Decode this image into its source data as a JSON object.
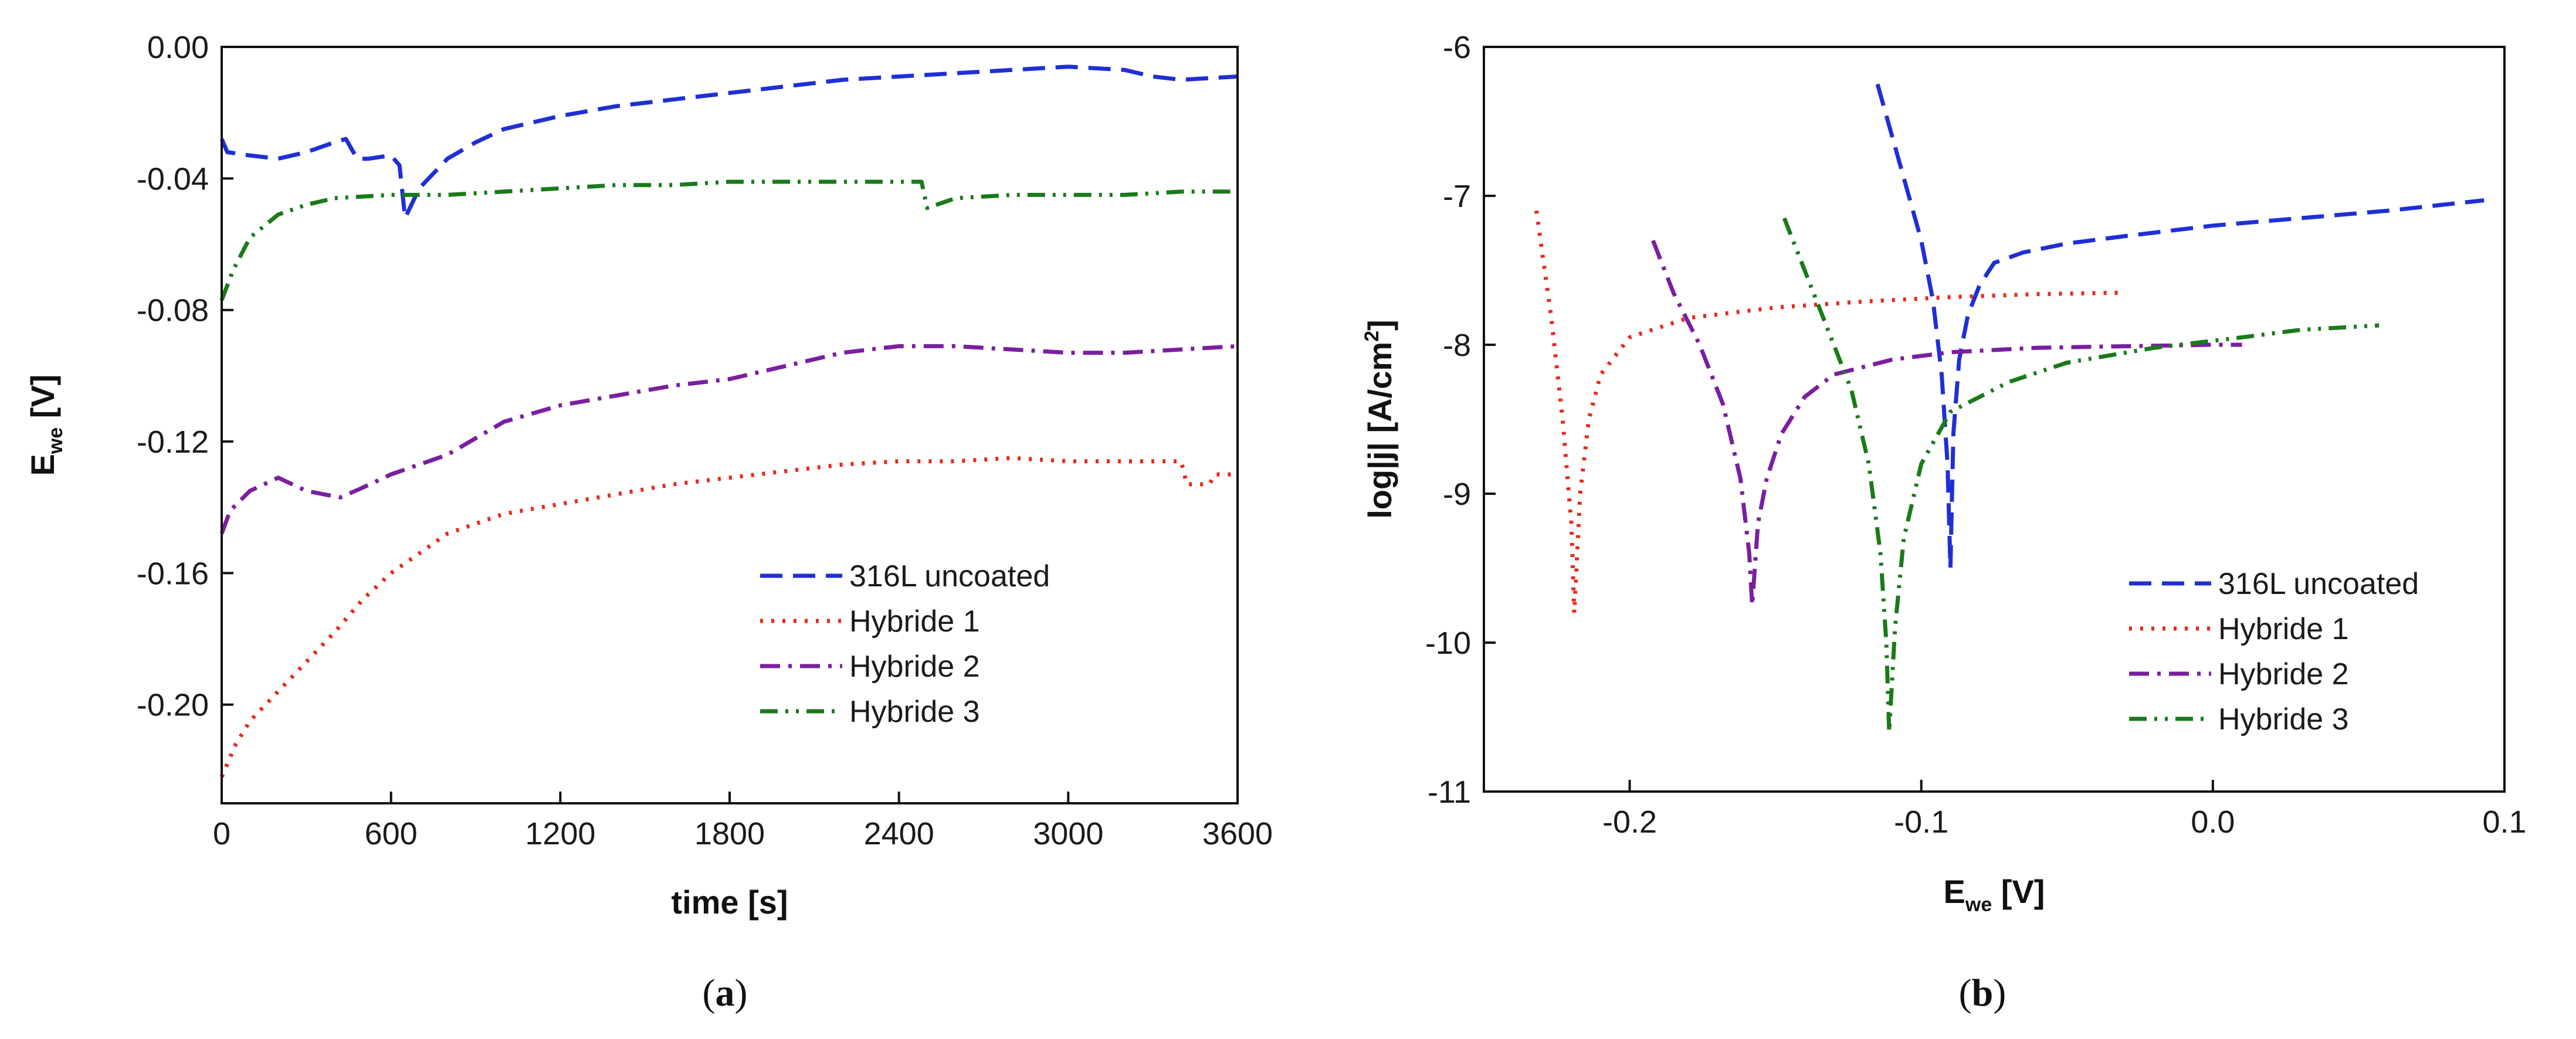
{
  "charts": [
    {
      "type": "line",
      "panel_label": "a",
      "xlabel": "time [s]",
      "ylabel_main": "E",
      "ylabel_sub": "we",
      "ylabel_unit": " [V]",
      "xlim": [
        0,
        3600
      ],
      "ylim": [
        -0.23,
        0.0
      ],
      "x_ticks": [
        0,
        600,
        1200,
        1800,
        2400,
        3000,
        3600
      ],
      "x_tick_labels": [
        "0",
        "600",
        "1200",
        "1800",
        "2400",
        "3000",
        "3600"
      ],
      "y_ticks": [
        0.0,
        -0.04,
        -0.08,
        -0.12,
        -0.16,
        -0.2
      ],
      "y_tick_labels": [
        "0.00",
        "-0.04",
        "-0.08",
        "-0.12",
        "-0.16",
        "-0.20"
      ],
      "legend_position": "bottom-right",
      "series": [
        {
          "name": "316L uncoated",
          "color": "#1f2fd6",
          "dash": "dashed",
          "points": [
            [
              0,
              -0.028
            ],
            [
              20,
              -0.032
            ],
            [
              100,
              -0.033
            ],
            [
              200,
              -0.034
            ],
            [
              300,
              -0.032
            ],
            [
              400,
              -0.029
            ],
            [
              440,
              -0.028
            ],
            [
              480,
              -0.034
            ],
            [
              520,
              -0.034
            ],
            [
              600,
              -0.033
            ],
            [
              630,
              -0.036
            ],
            [
              650,
              -0.052
            ],
            [
              700,
              -0.043
            ],
            [
              800,
              -0.034
            ],
            [
              900,
              -0.029
            ],
            [
              1000,
              -0.025
            ],
            [
              1200,
              -0.021
            ],
            [
              1400,
              -0.018
            ],
            [
              1600,
              -0.016
            ],
            [
              1800,
              -0.014
            ],
            [
              2000,
              -0.012
            ],
            [
              2200,
              -0.01
            ],
            [
              2400,
              -0.009
            ],
            [
              2600,
              -0.008
            ],
            [
              2800,
              -0.007
            ],
            [
              3000,
              -0.006
            ],
            [
              3200,
              -0.007
            ],
            [
              3300,
              -0.009
            ],
            [
              3400,
              -0.01
            ],
            [
              3600,
              -0.009
            ]
          ]
        },
        {
          "name": "Hybride 1",
          "color": "#e8291c",
          "dash": "dotted",
          "points": [
            [
              0,
              -0.222
            ],
            [
              20,
              -0.218
            ],
            [
              50,
              -0.212
            ],
            [
              100,
              -0.205
            ],
            [
              200,
              -0.196
            ],
            [
              300,
              -0.187
            ],
            [
              400,
              -0.178
            ],
            [
              500,
              -0.168
            ],
            [
              600,
              -0.16
            ],
            [
              800,
              -0.148
            ],
            [
              1000,
              -0.142
            ],
            [
              1200,
              -0.139
            ],
            [
              1400,
              -0.136
            ],
            [
              1600,
              -0.133
            ],
            [
              1800,
              -0.131
            ],
            [
              2000,
              -0.129
            ],
            [
              2200,
              -0.127
            ],
            [
              2400,
              -0.126
            ],
            [
              2600,
              -0.126
            ],
            [
              2800,
              -0.125
            ],
            [
              3000,
              -0.126
            ],
            [
              3200,
              -0.126
            ],
            [
              3400,
              -0.126
            ],
            [
              3420,
              -0.133
            ],
            [
              3500,
              -0.133
            ],
            [
              3520,
              -0.13
            ],
            [
              3600,
              -0.13
            ]
          ]
        },
        {
          "name": "Hybride 2",
          "color": "#7a1fa0",
          "dash": "dashdot",
          "points": [
            [
              0,
              -0.148
            ],
            [
              30,
              -0.141
            ],
            [
              100,
              -0.135
            ],
            [
              200,
              -0.131
            ],
            [
              300,
              -0.135
            ],
            [
              420,
              -0.137
            ],
            [
              500,
              -0.134
            ],
            [
              600,
              -0.13
            ],
            [
              800,
              -0.124
            ],
            [
              1000,
              -0.114
            ],
            [
              1200,
              -0.109
            ],
            [
              1400,
              -0.106
            ],
            [
              1600,
              -0.103
            ],
            [
              1800,
              -0.101
            ],
            [
              2000,
              -0.097
            ],
            [
              2200,
              -0.093
            ],
            [
              2400,
              -0.091
            ],
            [
              2600,
              -0.091
            ],
            [
              2800,
              -0.092
            ],
            [
              3000,
              -0.093
            ],
            [
              3200,
              -0.093
            ],
            [
              3400,
              -0.092
            ],
            [
              3600,
              -0.091
            ]
          ]
        },
        {
          "name": "Hybride 3",
          "color": "#1a7a1a",
          "dash": "dashdotdot",
          "points": [
            [
              0,
              -0.077
            ],
            [
              40,
              -0.068
            ],
            [
              100,
              -0.058
            ],
            [
              200,
              -0.051
            ],
            [
              300,
              -0.048
            ],
            [
              400,
              -0.046
            ],
            [
              600,
              -0.045
            ],
            [
              800,
              -0.045
            ],
            [
              1000,
              -0.044
            ],
            [
              1200,
              -0.043
            ],
            [
              1400,
              -0.042
            ],
            [
              1600,
              -0.042
            ],
            [
              1800,
              -0.041
            ],
            [
              2000,
              -0.041
            ],
            [
              2200,
              -0.041
            ],
            [
              2400,
              -0.041
            ],
            [
              2480,
              -0.041
            ],
            [
              2500,
              -0.049
            ],
            [
              2600,
              -0.046
            ],
            [
              2800,
              -0.045
            ],
            [
              3000,
              -0.045
            ],
            [
              3200,
              -0.045
            ],
            [
              3400,
              -0.044
            ],
            [
              3600,
              -0.044
            ]
          ]
        }
      ]
    },
    {
      "type": "line",
      "panel_label": "b",
      "xlabel_main": "E",
      "xlabel_sub": "we",
      "xlabel_unit": " [V]",
      "ylabel_main": "log|j| [A/cm",
      "ylabel_sup": "2",
      "ylabel_end": "]",
      "xlim": [
        -0.25,
        0.1
      ],
      "ylim": [
        -11,
        -6
      ],
      "x_ticks": [
        -0.2,
        -0.1,
        0.0,
        0.1
      ],
      "x_tick_labels": [
        "-0.2",
        "-0.1",
        "0.0",
        "0.1"
      ],
      "y_ticks": [
        -6,
        -7,
        -8,
        -9,
        -10,
        -11
      ],
      "y_tick_labels": [
        "-6",
        "-7",
        "-8",
        "-9",
        "-10",
        "-11"
      ],
      "legend_position": "bottom-right",
      "series": [
        {
          "name": "316L uncoated",
          "color": "#1f2fd6",
          "dash": "dashed",
          "points": [
            [
              -0.115,
              -6.25
            ],
            [
              -0.11,
              -6.6
            ],
            [
              -0.105,
              -6.95
            ],
            [
              -0.1,
              -7.3
            ],
            [
              -0.096,
              -7.7
            ],
            [
              -0.093,
              -8.2
            ],
            [
              -0.091,
              -8.8
            ],
            [
              -0.09,
              -9.5
            ],
            [
              -0.089,
              -8.6
            ],
            [
              -0.087,
              -8.1
            ],
            [
              -0.084,
              -7.8
            ],
            [
              -0.08,
              -7.6
            ],
            [
              -0.075,
              -7.45
            ],
            [
              -0.065,
              -7.38
            ],
            [
              -0.05,
              -7.32
            ],
            [
              -0.03,
              -7.27
            ],
            [
              0.0,
              -7.2
            ],
            [
              0.03,
              -7.15
            ],
            [
              0.06,
              -7.1
            ],
            [
              0.093,
              -7.03
            ]
          ]
        },
        {
          "name": "Hybride 1",
          "color": "#e8291c",
          "dash": "dotted",
          "points": [
            [
              -0.232,
              -7.1
            ],
            [
              -0.227,
              -7.8
            ],
            [
              -0.223,
              -8.5
            ],
            [
              -0.22,
              -9.2
            ],
            [
              -0.219,
              -9.8
            ],
            [
              -0.217,
              -9.0
            ],
            [
              -0.214,
              -8.5
            ],
            [
              -0.21,
              -8.2
            ],
            [
              -0.2,
              -7.95
            ],
            [
              -0.18,
              -7.82
            ],
            [
              -0.15,
              -7.75
            ],
            [
              -0.12,
              -7.71
            ],
            [
              -0.09,
              -7.68
            ],
            [
              -0.06,
              -7.66
            ],
            [
              -0.03,
              -7.65
            ]
          ]
        },
        {
          "name": "Hybride 2",
          "color": "#7a1fa0",
          "dash": "dashdot",
          "points": [
            [
              -0.192,
              -7.3
            ],
            [
              -0.185,
              -7.65
            ],
            [
              -0.176,
              -8.0
            ],
            [
              -0.168,
              -8.4
            ],
            [
              -0.162,
              -8.9
            ],
            [
              -0.159,
              -9.4
            ],
            [
              -0.158,
              -9.75
            ],
            [
              -0.156,
              -9.2
            ],
            [
              -0.153,
              -8.9
            ],
            [
              -0.148,
              -8.6
            ],
            [
              -0.14,
              -8.35
            ],
            [
              -0.13,
              -8.2
            ],
            [
              -0.11,
              -8.1
            ],
            [
              -0.09,
              -8.05
            ],
            [
              -0.06,
              -8.02
            ],
            [
              -0.03,
              -8.01
            ],
            [
              0.0,
              -8.0
            ],
            [
              0.01,
              -8.0
            ]
          ]
        },
        {
          "name": "Hybride 3",
          "color": "#1a7a1a",
          "dash": "dashdotdot",
          "points": [
            [
              -0.147,
              -7.15
            ],
            [
              -0.14,
              -7.5
            ],
            [
              -0.132,
              -7.9
            ],
            [
              -0.124,
              -8.3
            ],
            [
              -0.118,
              -8.8
            ],
            [
              -0.114,
              -9.4
            ],
            [
              -0.112,
              -10.0
            ],
            [
              -0.111,
              -10.6
            ],
            [
              -0.109,
              -9.9
            ],
            [
              -0.106,
              -9.3
            ],
            [
              -0.1,
              -8.8
            ],
            [
              -0.09,
              -8.45
            ],
            [
              -0.07,
              -8.25
            ],
            [
              -0.05,
              -8.12
            ],
            [
              -0.02,
              -8.02
            ],
            [
              0.01,
              -7.95
            ],
            [
              0.03,
              -7.9
            ],
            [
              0.057,
              -7.87
            ]
          ]
        }
      ]
    }
  ]
}
